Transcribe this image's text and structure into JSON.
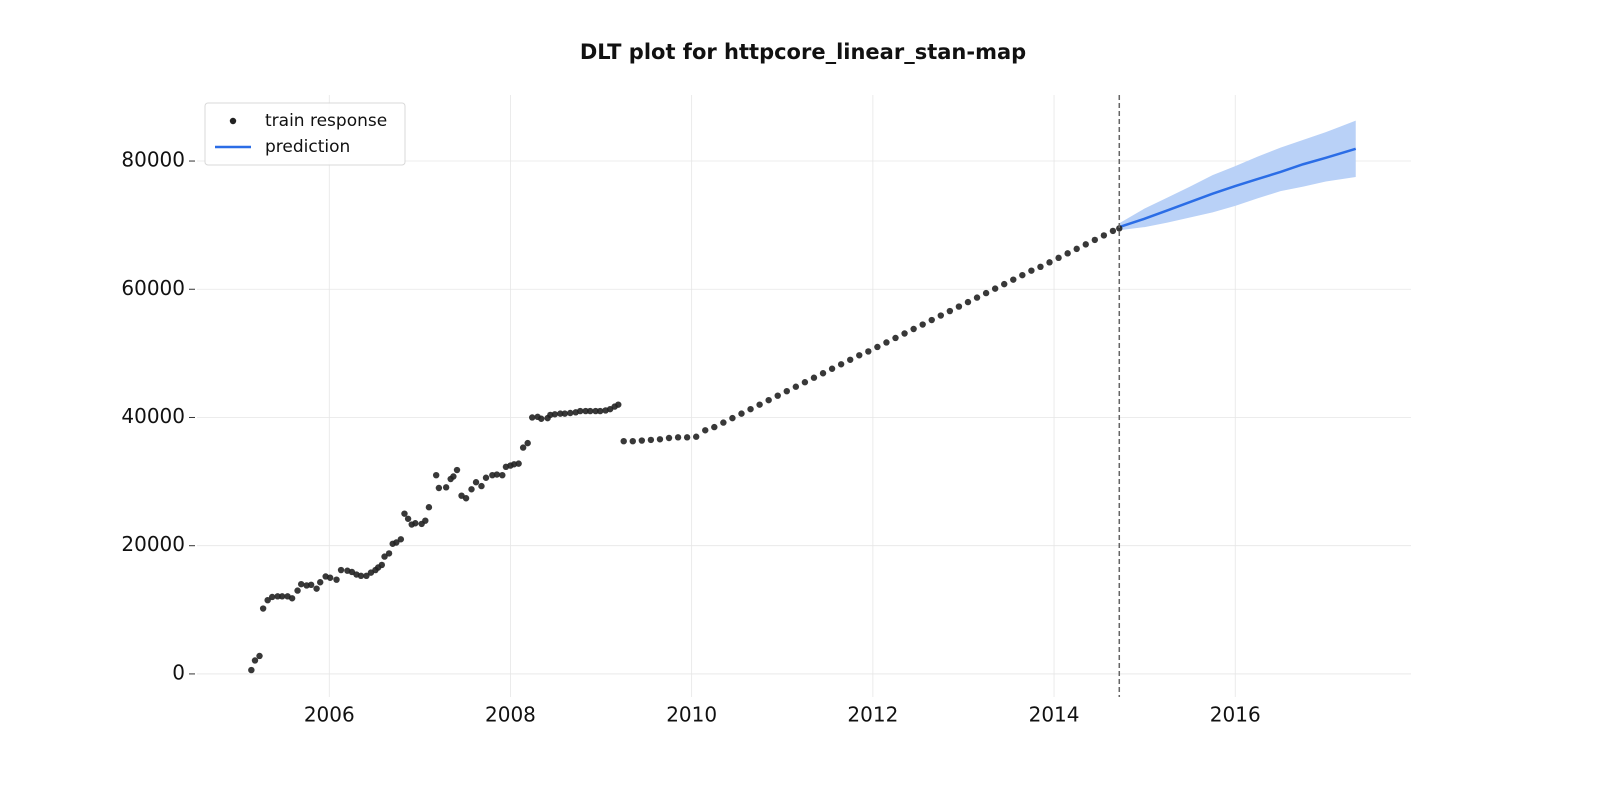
{
  "chart_data": {
    "type": "scatter",
    "title": "DLT plot for httpcore_linear_stan-map",
    "xlim": [
      2004.54,
      2017.94
    ],
    "xticks": [
      2006,
      2008,
      2010,
      2012,
      2014,
      2016
    ],
    "ylim": [
      -3600,
      90300
    ],
    "yticks": [
      0,
      20000,
      40000,
      60000,
      80000
    ],
    "grid": true,
    "legend": "upper left",
    "vline_x": 2014.72,
    "series": [
      {
        "name": "train response",
        "type": "scatter",
        "color": "#222222",
        "x": [
          2005.14,
          2005.18,
          2005.23,
          2005.27,
          2005.32,
          2005.37,
          2005.43,
          2005.48,
          2005.54,
          2005.59,
          2005.65,
          2005.69,
          2005.75,
          2005.8,
          2005.86,
          2005.9,
          2005.96,
          2006.01,
          2006.08,
          2006.13,
          2006.2,
          2006.25,
          2006.3,
          2006.35,
          2006.41,
          2006.46,
          2006.51,
          2006.54,
          2006.58,
          2006.61,
          2006.66,
          2006.7,
          2006.74,
          2006.79,
          2006.83,
          2006.87,
          2006.91,
          2006.95,
          2007.02,
          2007.06,
          2007.1,
          2007.18,
          2007.21,
          2007.29,
          2007.34,
          2007.37,
          2007.41,
          2007.46,
          2007.51,
          2007.57,
          2007.62,
          2007.68,
          2007.73,
          2007.8,
          2007.85,
          2007.91,
          2007.95,
          2008.0,
          2008.04,
          2008.09,
          2008.14,
          2008.19,
          2008.24,
          2008.3,
          2008.34,
          2008.41,
          2008.44,
          2008.49,
          2008.55,
          2008.6,
          2008.66,
          2008.72,
          2008.77,
          2008.83,
          2008.88,
          2008.94,
          2008.99,
          2009.05,
          2009.1,
          2009.15,
          2009.19,
          2009.25,
          2009.35,
          2009.45,
          2009.55,
          2009.65,
          2009.75,
          2009.85,
          2009.95,
          2010.05,
          2010.15,
          2010.25,
          2010.35,
          2010.45,
          2010.55,
          2010.65,
          2010.75,
          2010.85,
          2010.95,
          2011.05,
          2011.15,
          2011.25,
          2011.35,
          2011.45,
          2011.55,
          2011.65,
          2011.75,
          2011.85,
          2011.95,
          2012.05,
          2012.15,
          2012.25,
          2012.35,
          2012.45,
          2012.55,
          2012.65,
          2012.75,
          2012.85,
          2012.95,
          2013.05,
          2013.15,
          2013.25,
          2013.35,
          2013.45,
          2013.55,
          2013.65,
          2013.75,
          2013.85,
          2013.95,
          2014.05,
          2014.15,
          2014.25,
          2014.35,
          2014.45,
          2014.55,
          2014.65,
          2014.72
        ],
        "values": [
          600,
          2100,
          2800,
          10200,
          11500,
          12000,
          12100,
          12100,
          12100,
          11800,
          13000,
          14000,
          13800,
          13900,
          13300,
          14300,
          15200,
          15000,
          14700,
          16200,
          16100,
          15900,
          15500,
          15300,
          15300,
          15800,
          16200,
          16600,
          17000,
          18300,
          18800,
          20300,
          20500,
          21000,
          25000,
          24200,
          23300,
          23500,
          23400,
          23900,
          26000,
          31000,
          29000,
          29100,
          30400,
          30800,
          31800,
          27800,
          27400,
          28800,
          29900,
          29300,
          30600,
          31000,
          31100,
          31000,
          32300,
          32500,
          32700,
          32800,
          35300,
          36000,
          40000,
          40100,
          39800,
          39900,
          40400,
          40500,
          40600,
          40600,
          40700,
          40800,
          41000,
          41000,
          41000,
          41000,
          41000,
          41100,
          41300,
          41700,
          42000,
          36300,
          36300,
          36400,
          36500,
          36600,
          36800,
          36900,
          36900,
          37000,
          38000,
          38500,
          39200,
          39900,
          40600,
          41300,
          42000,
          42700,
          43400,
          44100,
          44800,
          45500,
          46200,
          46900,
          47600,
          48300,
          49000,
          49700,
          50300,
          51000,
          51700,
          52400,
          53100,
          53800,
          54500,
          55200,
          55900,
          56600,
          57300,
          58000,
          58700,
          59400,
          60100,
          60800,
          61500,
          62200,
          62900,
          63500,
          64200,
          64900,
          65600,
          66300,
          67000,
          67700,
          68400,
          69100,
          69500
        ]
      },
      {
        "name": "prediction",
        "type": "line",
        "color": "#2b6de6",
        "band_color": "#b9d1f7",
        "x": [
          2014.72,
          2015.0,
          2015.25,
          2015.5,
          2015.75,
          2016.0,
          2016.25,
          2016.5,
          2016.75,
          2017.0,
          2017.33
        ],
        "values": [
          69700,
          71000,
          72300,
          73600,
          74900,
          76100,
          77200,
          78300,
          79500,
          80500,
          81900
        ],
        "lower": [
          69200,
          69700,
          70400,
          71200,
          72000,
          73000,
          74200,
          75300,
          76000,
          76800,
          77500
        ],
        "upper": [
          70300,
          72600,
          74300,
          76000,
          77800,
          79200,
          80700,
          82100,
          83300,
          84500,
          86300
        ]
      }
    ]
  }
}
